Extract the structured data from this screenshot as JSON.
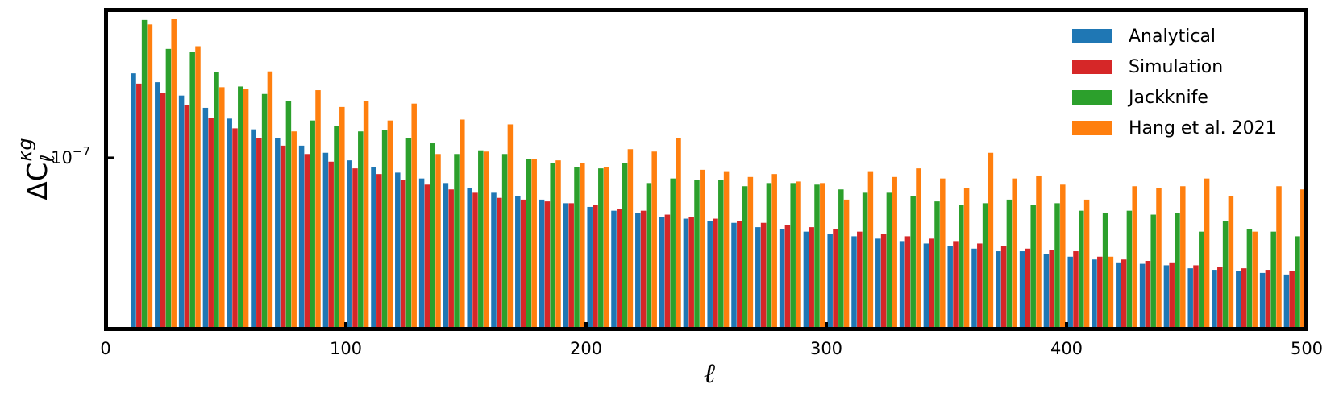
{
  "chart_data": {
    "type": "bar",
    "xlabel": "ℓ",
    "ylabel": {
      "base": "ΔC",
      "subscript": "ℓ",
      "superscript": "κg"
    },
    "xlim": [
      0,
      500
    ],
    "ylim": [
      2.6e-08,
      3.2e-07
    ],
    "yscale": "log",
    "grid": false,
    "legend_position": "top-right",
    "x_ticks": [
      0,
      100,
      200,
      300,
      400,
      500
    ],
    "x_tick_labels": [
      "0",
      "100",
      "200",
      "300",
      "400",
      "500"
    ],
    "y_ticks": [
      1e-07
    ],
    "y_tick_labels": [
      {
        "base": "10",
        "exp": "−7"
      }
    ],
    "x": [
      15,
      25,
      35,
      45,
      55,
      65,
      75,
      85,
      95,
      105,
      115,
      125,
      135,
      145,
      155,
      165,
      175,
      185,
      195,
      205,
      215,
      225,
      235,
      245,
      255,
      265,
      275,
      285,
      295,
      305,
      315,
      325,
      335,
      345,
      355,
      365,
      375,
      385,
      395,
      405,
      415,
      425,
      435,
      445,
      455,
      465,
      475,
      485,
      495
    ],
    "series": [
      {
        "name": "Analytical",
        "color": "#1f77b4",
        "values": [
          1.94e-07,
          1.81e-07,
          1.63e-07,
          1.48e-07,
          1.36e-07,
          1.25e-07,
          1.17e-07,
          1.1e-07,
          1.04e-07,
          9.8e-08,
          9.3e-08,
          8.9e-08,
          8.5e-08,
          8.2e-08,
          7.9e-08,
          7.6e-08,
          7.4e-08,
          7.2e-08,
          7e-08,
          6.8e-08,
          6.6e-08,
          6.5e-08,
          6.3e-08,
          6.2e-08,
          6.1e-08,
          6e-08,
          5.8e-08,
          5.7e-08,
          5.6e-08,
          5.5e-08,
          5.4e-08,
          5.3e-08,
          5.2e-08,
          5.1e-08,
          5e-08,
          4.9e-08,
          4.8e-08,
          4.8e-08,
          4.7e-08,
          4.6e-08,
          4.5e-08,
          4.4e-08,
          4.35e-08,
          4.3e-08,
          4.2e-08,
          4.15e-08,
          4.1e-08,
          4.05e-08,
          4e-08
        ]
      },
      {
        "name": "Simulation",
        "color": "#d62728",
        "values": [
          1.79e-07,
          1.66e-07,
          1.51e-07,
          1.37e-07,
          1.26e-07,
          1.17e-07,
          1.1e-07,
          1.03e-07,
          9.7e-08,
          9.2e-08,
          8.8e-08,
          8.4e-08,
          8.1e-08,
          7.8e-08,
          7.6e-08,
          7.3e-08,
          7.2e-08,
          7.1e-08,
          7e-08,
          6.9e-08,
          6.7e-08,
          6.6e-08,
          6.4e-08,
          6.3e-08,
          6.2e-08,
          6.1e-08,
          6e-08,
          5.9e-08,
          5.8e-08,
          5.7e-08,
          5.6e-08,
          5.5e-08,
          5.4e-08,
          5.3e-08,
          5.2e-08,
          5.1e-08,
          5e-08,
          4.9e-08,
          4.85e-08,
          4.8e-08,
          4.6e-08,
          4.5e-08,
          4.45e-08,
          4.4e-08,
          4.3e-08,
          4.25e-08,
          4.2e-08,
          4.15e-08,
          4.1e-08
        ]
      },
      {
        "name": "Jackknife",
        "color": "#2ca02c",
        "values": [
          2.95e-07,
          2.35e-07,
          2.3e-07,
          1.96e-07,
          1.75e-07,
          1.65e-07,
          1.56e-07,
          1.34e-07,
          1.28e-07,
          1.23e-07,
          1.24e-07,
          1.17e-07,
          1.12e-07,
          1.03e-07,
          1.06e-07,
          1.03e-07,
          9.9e-08,
          9.6e-08,
          9.3e-08,
          9.2e-08,
          9.6e-08,
          8.2e-08,
          8.5e-08,
          8.4e-08,
          8.4e-08,
          8e-08,
          8.2e-08,
          8.2e-08,
          8.1e-08,
          7.8e-08,
          7.6e-08,
          7.6e-08,
          7.4e-08,
          7.1e-08,
          6.9e-08,
          7e-08,
          7.2e-08,
          6.9e-08,
          7e-08,
          6.6e-08,
          6.5e-08,
          6.6e-08,
          6.4e-08,
          6.5e-08,
          5.6e-08,
          6.1e-08,
          5.7e-08,
          5.6e-08,
          5.4e-08
        ]
      },
      {
        "name": "Hang et al. 2021",
        "color": "#ff7f0e",
        "values": [
          2.85e-07,
          2.98e-07,
          2.4e-07,
          1.74e-07,
          1.72e-07,
          1.97e-07,
          1.23e-07,
          1.7e-07,
          1.49e-07,
          1.56e-07,
          1.34e-07,
          1.53e-07,
          1.03e-07,
          1.35e-07,
          1.05e-07,
          1.3e-07,
          9.9e-08,
          9.8e-08,
          9.6e-08,
          9.3e-08,
          1.07e-07,
          1.05e-07,
          1.17e-07,
          9.1e-08,
          9e-08,
          8.6e-08,
          8.8e-08,
          8.3e-08,
          8.2e-08,
          7.2e-08,
          9e-08,
          8.6e-08,
          9.2e-08,
          8.5e-08,
          7.9e-08,
          1.04e-07,
          8.5e-08,
          8.7e-08,
          8.1e-08,
          7.2e-08,
          4.6e-08,
          8e-08,
          7.9e-08,
          8e-08,
          8.5e-08,
          7.4e-08,
          5.6e-08,
          8e-08,
          7.8e-08
        ]
      }
    ]
  }
}
